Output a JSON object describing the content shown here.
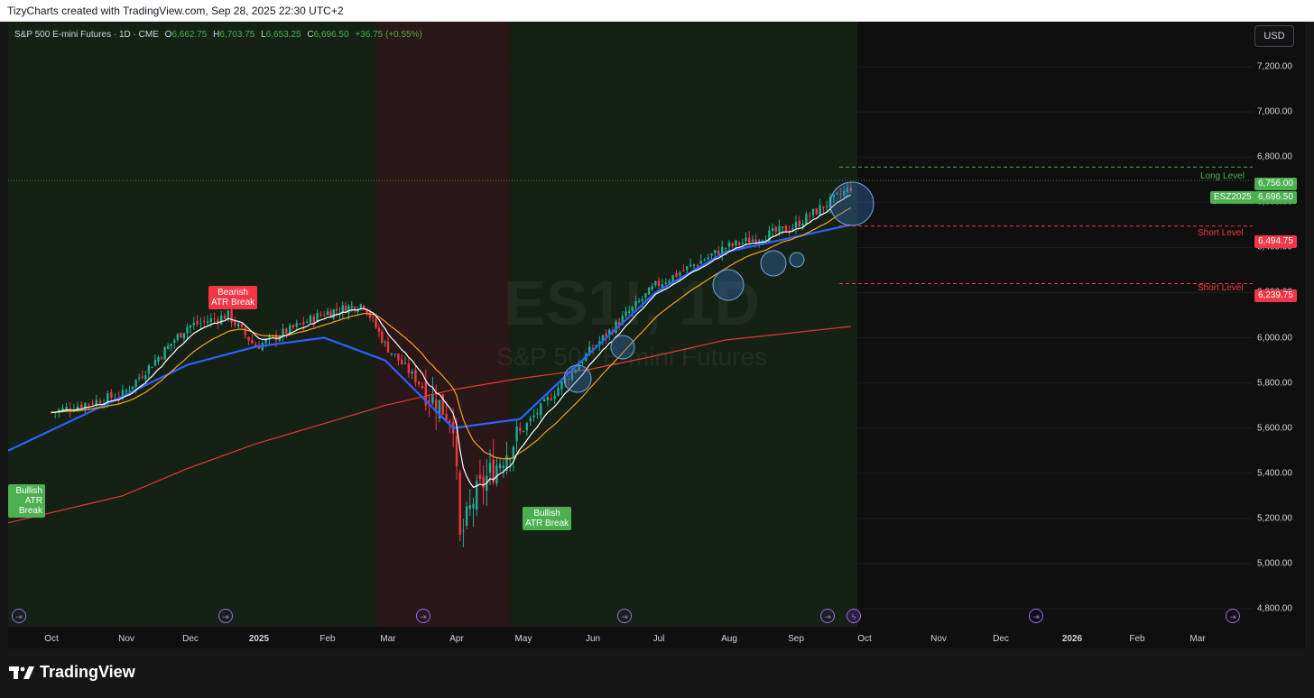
{
  "header": {
    "text": "TizyCharts created with TradingView.com, Sep 28, 2025 22:30 UTC+2"
  },
  "legend": {
    "symbol": "S&P 500 E-mini Futures · 1D · CME",
    "open_label": "O",
    "open": "6,662.75",
    "high_label": "H",
    "high": "6,703.75",
    "low_label": "L",
    "low": "6,653.25",
    "close_label": "C",
    "close": "6,696.50",
    "change": "+36.75 (+0.55%)"
  },
  "currency": "USD",
  "watermark": {
    "ticker": "ES1!, 1D",
    "name": "S&P 500 E-mini Futures"
  },
  "levels": {
    "long": {
      "label": "Long Level",
      "value": "6,756.00"
    },
    "short1": {
      "label": "Short Level",
      "value": "6,494.75"
    },
    "short2": {
      "label": "Short Level",
      "value": "6,239.75"
    },
    "last": {
      "label": "ESZ2025",
      "value": "6,696.50"
    }
  },
  "tags": {
    "bearish": {
      "line1": "Bearish",
      "line2": "ATR Break"
    },
    "bullish_left": {
      "line1": "Bullish",
      "line2": "ATR Break"
    },
    "bullish_may": {
      "line1": "Bullish",
      "line2": "ATR Break"
    }
  },
  "footer": {
    "brand": "TradingView"
  },
  "colors": {
    "up": "#22ab94",
    "down": "#f23645",
    "ema_fast": "#ffffff",
    "ema_mid": "#f7a21b",
    "ma50": "#2962ff",
    "ma200": "#e53935",
    "bull_bg": "#142114",
    "bear_bg": "#2a1718",
    "event": "#9c6cf0"
  },
  "chart_data": {
    "type": "candlestick",
    "x_axis": {
      "tick_labels": [
        "Oct",
        "Nov",
        "Dec",
        "2025",
        "Feb",
        "Mar",
        "Apr",
        "May",
        "Jun",
        "Jul",
        "Aug",
        "Sep",
        "Oct",
        "Nov",
        "Dec",
        "2026",
        "Feb",
        "Mar"
      ]
    },
    "y_axis": {
      "tick_labels": [
        "4,800.00",
        "5,000.00",
        "5,200.00",
        "5,400.00",
        "5,600.00",
        "5,800.00",
        "6,000.00",
        "6,200.00",
        "6,400.00",
        "6,600.00",
        "6,800.00",
        "7,000.00",
        "7,200.00"
      ],
      "range": [
        4720,
        7400
      ]
    },
    "closes_monthly": [
      {
        "date": "2024-10",
        "close": 5750
      },
      {
        "date": "2024-11",
        "close": 6050
      },
      {
        "date": "2024-12",
        "close": 5960
      },
      {
        "date": "2025-01",
        "close": 6110
      },
      {
        "date": "2025-02",
        "close": 5970
      },
      {
        "date": "2025-03",
        "close": 5640
      },
      {
        "date": "2025-04",
        "close": 5580
      },
      {
        "date": "2025-05",
        "close": 5940
      },
      {
        "date": "2025-06",
        "close": 6230
      },
      {
        "date": "2025-07",
        "close": 6400
      },
      {
        "date": "2025-08",
        "close": 6490
      },
      {
        "date": "2025-09",
        "close": 6696.5
      }
    ],
    "series": [
      {
        "type": "ma",
        "color": "#e53935",
        "values": [
          5180,
          5300,
          5420,
          5530,
          5620,
          5700,
          5770,
          5820,
          5860,
          5920,
          5990,
          6050
        ]
      },
      {
        "type": "ma",
        "color": "#2962ff",
        "values": [
          5500,
          5740,
          5880,
          5960,
          6000,
          5900,
          5600,
          5640,
          5930,
          6200,
          6380,
          6500
        ]
      },
      {
        "type": "ema",
        "color": "#f7a21b"
      },
      {
        "type": "ema",
        "color": "#ffffff"
      }
    ],
    "regimes": [
      {
        "state": "bullish",
        "from": "2024-10",
        "to": "2025-03"
      },
      {
        "state": "bearish",
        "from": "2025-03",
        "to": "2025-05"
      },
      {
        "state": "bullish",
        "from": "2025-05",
        "to": "2025-09"
      }
    ]
  }
}
